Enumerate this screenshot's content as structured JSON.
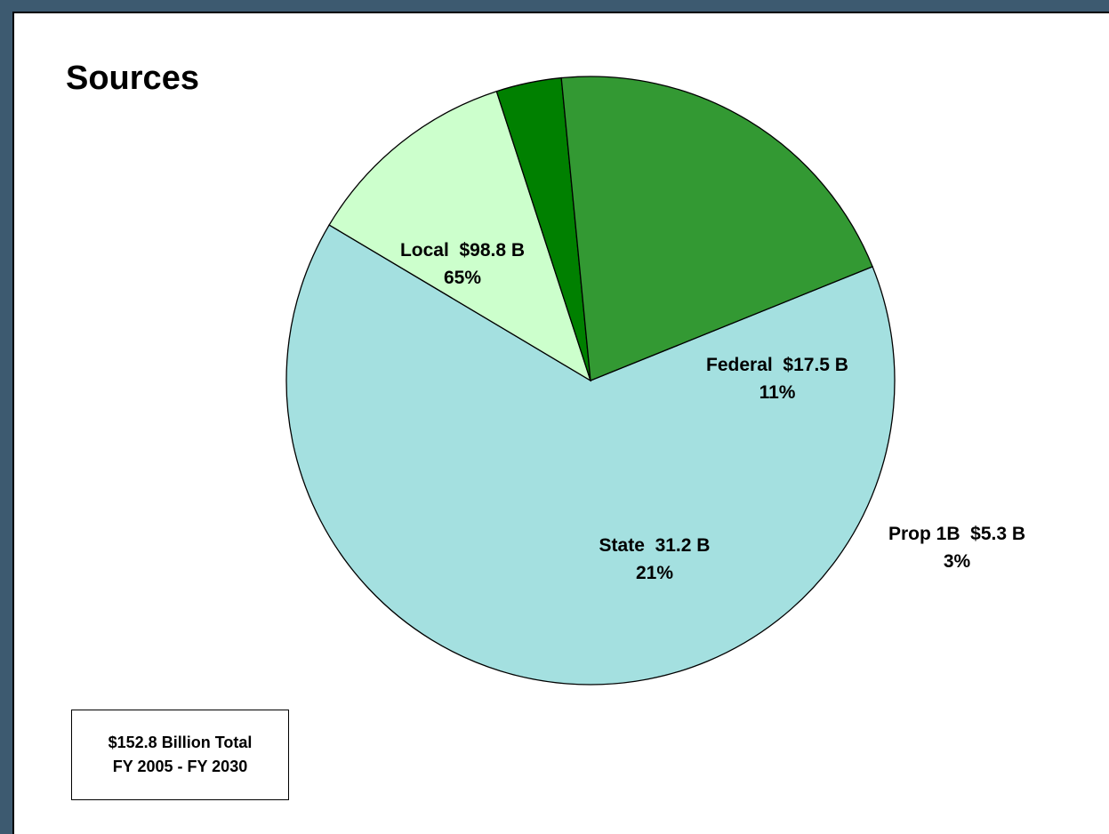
{
  "title": "Sources",
  "total_box": {
    "line1": "$152.8 Billion Total",
    "line2": "FY 2005 - FY 2030"
  },
  "chart_data": {
    "type": "pie",
    "title": "Sources",
    "total": 152.8,
    "total_unit": "Billion",
    "period": "FY 2005 - FY 2030",
    "slices": [
      {
        "name": "Local",
        "value": 98.8,
        "percent": 65,
        "color": "#a4e0e0",
        "label_lines": [
          "Local  $98.8 B",
          "65%"
        ]
      },
      {
        "name": "Federal",
        "value": 17.5,
        "percent": 11,
        "color": "#ccffcc",
        "label_lines": [
          "Federal  $17.5 B",
          "11%"
        ]
      },
      {
        "name": "Prop 1B",
        "value": 5.3,
        "percent": 3,
        "color": "#008000",
        "label_lines": [
          "Prop 1B  $5.3 B",
          "3%"
        ]
      },
      {
        "name": "State",
        "value": 31.2,
        "percent": 21,
        "color": "#339933",
        "label_lines": [
          "State  31.2 B",
          "21%"
        ]
      }
    ]
  }
}
